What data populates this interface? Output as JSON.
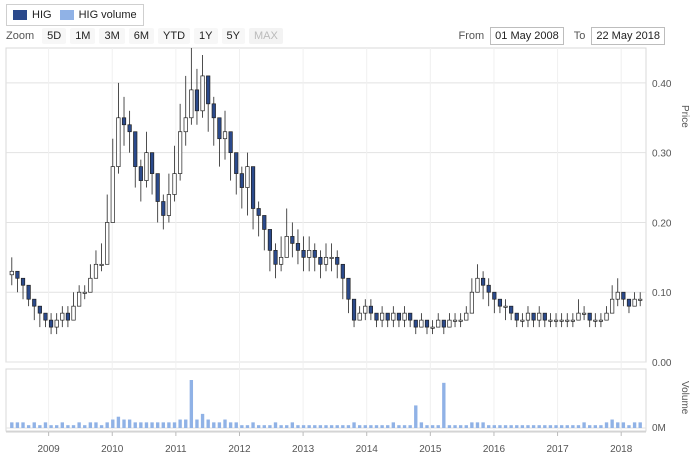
{
  "legend": [
    {
      "label": "HIG",
      "color": "#2b4a8c"
    },
    {
      "label": "HIG volume",
      "color": "#90b2e6"
    }
  ],
  "toolbar": {
    "zoom_label": "Zoom",
    "buttons": [
      "5D",
      "1M",
      "3M",
      "6M",
      "YTD",
      "1Y",
      "5Y",
      "MAX"
    ],
    "disabled": [
      "MAX"
    ]
  },
  "range": {
    "from_label": "From",
    "from_value": "01 May 2008",
    "to_label": "To",
    "to_value": "22 May 2018"
  },
  "chart_data": [
    {
      "type": "candlestick",
      "ylabel": "Price",
      "ylim": [
        0,
        0.45
      ],
      "yticks": [
        "0.00",
        "0.10",
        "0.20",
        "0.30",
        "0.40"
      ],
      "ytick_values": [
        0,
        0.1,
        0.2,
        0.3,
        0.4
      ],
      "xlim": [
        2008.33,
        2018.39
      ],
      "xticks": [
        "2009",
        "2010",
        "2011",
        "2012",
        "2013",
        "2014",
        "2015",
        "2016",
        "2017",
        "2018"
      ],
      "xtick_values": [
        2009,
        2010,
        2011,
        2012,
        2013,
        2014,
        2015,
        2016,
        2017,
        2018
      ],
      "up_color": "#ffffff",
      "down_color": "#2b4a8c",
      "closes": [
        0.13,
        0.12,
        0.11,
        0.09,
        0.08,
        0.07,
        0.06,
        0.05,
        0.06,
        0.07,
        0.06,
        0.08,
        0.1,
        0.1,
        0.12,
        0.14,
        0.14,
        0.2,
        0.28,
        0.35,
        0.34,
        0.33,
        0.28,
        0.26,
        0.3,
        0.27,
        0.23,
        0.21,
        0.24,
        0.27,
        0.33,
        0.35,
        0.39,
        0.36,
        0.41,
        0.37,
        0.35,
        0.32,
        0.33,
        0.3,
        0.27,
        0.25,
        0.28,
        0.22,
        0.21,
        0.19,
        0.16,
        0.14,
        0.15,
        0.18,
        0.17,
        0.16,
        0.15,
        0.16,
        0.15,
        0.14,
        0.15,
        0.15,
        0.14,
        0.12,
        0.09,
        0.06,
        0.07,
        0.08,
        0.07,
        0.06,
        0.07,
        0.06,
        0.07,
        0.06,
        0.07,
        0.06,
        0.05,
        0.06,
        0.05,
        0.05,
        0.06,
        0.05,
        0.06,
        0.06,
        0.06,
        0.07,
        0.1,
        0.12,
        0.11,
        0.1,
        0.09,
        0.08,
        0.08,
        0.07,
        0.06,
        0.06,
        0.07,
        0.06,
        0.07,
        0.06,
        0.06,
        0.06,
        0.06,
        0.06,
        0.06,
        0.07,
        0.07,
        0.06,
        0.06,
        0.06,
        0.07,
        0.09,
        0.1,
        0.09,
        0.08,
        0.09,
        0.09
      ],
      "highs": [
        0.15,
        0.13,
        0.12,
        0.1,
        0.09,
        0.08,
        0.07,
        0.07,
        0.07,
        0.08,
        0.08,
        0.1,
        0.11,
        0.11,
        0.14,
        0.16,
        0.17,
        0.24,
        0.32,
        0.4,
        0.38,
        0.36,
        0.31,
        0.29,
        0.33,
        0.3,
        0.26,
        0.24,
        0.27,
        0.31,
        0.37,
        0.41,
        0.45,
        0.42,
        0.44,
        0.41,
        0.38,
        0.35,
        0.36,
        0.33,
        0.29,
        0.28,
        0.3,
        0.25,
        0.23,
        0.21,
        0.18,
        0.17,
        0.18,
        0.22,
        0.2,
        0.19,
        0.18,
        0.18,
        0.17,
        0.16,
        0.17,
        0.17,
        0.16,
        0.14,
        0.11,
        0.08,
        0.08,
        0.09,
        0.09,
        0.07,
        0.08,
        0.07,
        0.08,
        0.07,
        0.08,
        0.07,
        0.06,
        0.07,
        0.06,
        0.06,
        0.07,
        0.06,
        0.07,
        0.07,
        0.07,
        0.08,
        0.12,
        0.14,
        0.13,
        0.12,
        0.1,
        0.09,
        0.09,
        0.08,
        0.07,
        0.07,
        0.08,
        0.07,
        0.08,
        0.07,
        0.07,
        0.07,
        0.07,
        0.07,
        0.07,
        0.09,
        0.08,
        0.07,
        0.07,
        0.07,
        0.08,
        0.11,
        0.12,
        0.1,
        0.09,
        0.1,
        0.1
      ],
      "lows": [
        0.11,
        0.1,
        0.09,
        0.08,
        0.06,
        0.05,
        0.05,
        0.04,
        0.04,
        0.05,
        0.05,
        0.06,
        0.08,
        0.09,
        0.1,
        0.12,
        0.13,
        0.14,
        0.2,
        0.27,
        0.31,
        0.3,
        0.25,
        0.23,
        0.25,
        0.24,
        0.2,
        0.19,
        0.2,
        0.23,
        0.26,
        0.31,
        0.34,
        0.34,
        0.35,
        0.33,
        0.31,
        0.28,
        0.29,
        0.26,
        0.24,
        0.22,
        0.21,
        0.19,
        0.18,
        0.16,
        0.13,
        0.12,
        0.13,
        0.15,
        0.15,
        0.14,
        0.13,
        0.13,
        0.13,
        0.12,
        0.13,
        0.13,
        0.12,
        0.09,
        0.07,
        0.05,
        0.06,
        0.06,
        0.06,
        0.05,
        0.05,
        0.05,
        0.05,
        0.05,
        0.05,
        0.05,
        0.04,
        0.05,
        0.04,
        0.04,
        0.05,
        0.04,
        0.05,
        0.05,
        0.05,
        0.06,
        0.07,
        0.1,
        0.09,
        0.08,
        0.07,
        0.07,
        0.06,
        0.06,
        0.05,
        0.05,
        0.05,
        0.05,
        0.05,
        0.05,
        0.05,
        0.05,
        0.05,
        0.05,
        0.05,
        0.06,
        0.06,
        0.05,
        0.05,
        0.05,
        0.06,
        0.07,
        0.08,
        0.08,
        0.07,
        0.08,
        0.08
      ]
    },
    {
      "type": "bar",
      "ylabel": "Volume",
      "yticks": [
        "0M"
      ],
      "bar_color": "#90b2e6",
      "values": [
        2,
        2,
        2,
        1,
        2,
        1,
        2,
        1,
        1,
        2,
        1,
        1,
        2,
        1,
        2,
        2,
        1,
        2,
        3,
        4,
        3,
        3,
        2,
        2,
        2,
        2,
        2,
        2,
        2,
        2,
        3,
        3,
        17,
        3,
        5,
        3,
        2,
        2,
        3,
        2,
        2,
        1,
        1,
        2,
        1,
        1,
        1,
        2,
        1,
        1,
        2,
        1,
        1,
        1,
        1,
        1,
        1,
        1,
        1,
        1,
        1,
        2,
        1,
        1,
        1,
        1,
        1,
        1,
        2,
        1,
        1,
        1,
        8,
        2,
        1,
        1,
        1,
        16,
        1,
        1,
        1,
        1,
        2,
        2,
        2,
        1,
        1,
        1,
        1,
        1,
        1,
        1,
        1,
        1,
        1,
        1,
        1,
        1,
        1,
        1,
        1,
        1,
        2,
        1,
        1,
        1,
        2,
        3,
        2,
        2,
        1,
        2,
        2
      ]
    }
  ]
}
